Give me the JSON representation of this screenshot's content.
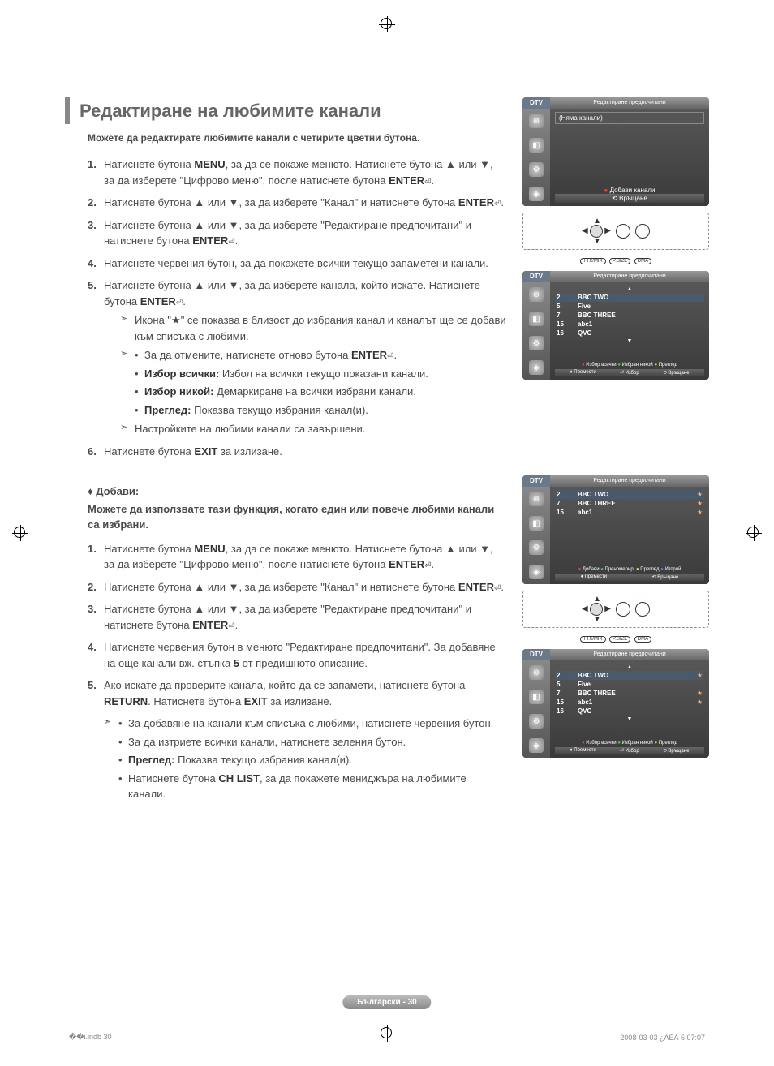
{
  "title": "Редактиране на любимите канали",
  "intro": "Можете да редактирате любимите канали с четирите цветни бутона.",
  "steps1": [
    {
      "pre": "Натиснете бутона ",
      "b1": "MENU",
      "mid": ", за да се покаже менюто. Натиснете бутона ▲ или ▼, за да изберете \"Цифрово меню\", после натиснете бутона ",
      "b2": "ENTER",
      "post": "."
    },
    {
      "pre": "Натиснете бутона ▲ или ▼, за да изберете \"Канал\" и натиснете бутона ",
      "b1": "ENTER",
      "post": "."
    },
    {
      "pre": "Натиснете бутона ▲ или ▼, за да изберете \"Редактиране предпочитани\" и натиснете бутона ",
      "b1": "ENTER",
      "post": "."
    },
    {
      "pre": "Натиснете червения бутон, за да покажете всички текущо запаметени канали."
    },
    {
      "pre": "Натиснете бутона ▲ или ▼, за да изберете канала, който искате. Натиснете бутона ",
      "b1": "ENTER",
      "post": "."
    }
  ],
  "sub1_1": "Икона \"★\" се показва в близост до избрания канал и каналът ще се добави към списъка с любими.",
  "sub1_2_intro": "За да отмените, натиснете отново бутона ",
  "sub1_2_b": "ENTER",
  "sub1_2_post": ".",
  "bullets1": [
    {
      "b": "Избор всички:",
      "t": " Избол на всички текущо показани канали."
    },
    {
      "b": "Избор никой:",
      "t": " Демаркиране на всички избрани канали."
    },
    {
      "b": "Преглед:",
      "t": " Показва текущо избрания канал(и)."
    }
  ],
  "sub1_3": "Настройките на любими канали са завършени.",
  "step6_pre": "Натиснете бутона ",
  "step6_b": "EXIT",
  "step6_post": " за излизане.",
  "section2_head": "Добави:",
  "section2_intro": "Можете да използвате тази функция, когато един или повече любими канали са избрани.",
  "steps2": [
    {
      "pre": "Натиснете бутона ",
      "b1": "MENU",
      "mid": ", за да се покаже менюто. Натиснете бутона ▲ или ▼, за да изберете \"Цифрово меню\", после натиснете бутона ",
      "b2": "ENTER",
      "post": "."
    },
    {
      "pre": "Натиснете бутона ▲ или ▼, за да изберете \"Канал\" и натиснете бутона ",
      "b1": "ENTER",
      "post": "."
    },
    {
      "pre": "Натиснете бутона ▲ или ▼, за да изберете \"Редактиране предпочитани\" и натиснете бутона ",
      "b1": "ENTER",
      "post": "."
    },
    {
      "pre": "Натиснете червения бутон в менюто \"Редактиране предпочитани\". За добавяне на още канали вж. стъпка ",
      "b1": "5",
      "post": " от предишното описание."
    },
    {
      "pre": "Ако искате да проверите канала, който да се запамети, натиснете бутона ",
      "b1": "RETURN",
      "mid": ". Натиснете бутона ",
      "b2": "EXIT",
      "post": " за излизане."
    }
  ],
  "sub2_1": "За добавяне на канали към списъка с любими, натиснете червения бутон.",
  "bullets2": [
    {
      "t": "За да изтриете всички канали, натиснете зеления бутон."
    },
    {
      "b": "Преглед:",
      "t": " Показва текущо избрания канал(и)."
    },
    {
      "pre": "Натиснете бутона ",
      "b": "CH LIST",
      "t": ", за да покажете мениджъра на любимите канали."
    }
  ],
  "tv": {
    "dtv": "DTV",
    "title": "Редактиране предпочитани",
    "empty": "(Няма канали)",
    "add": "Добави канали",
    "return": "Връщане",
    "channels2": [
      {
        "n": "2",
        "name": "BBC TWO",
        "hl": true
      },
      {
        "n": "5",
        "name": "Five"
      },
      {
        "n": "7",
        "name": "BBC THREE"
      },
      {
        "n": "15",
        "name": "abc1"
      },
      {
        "n": "16",
        "name": "QVC"
      }
    ],
    "f2a": "Избор всички",
    "f2b": "Избран никой",
    "f2c": "Преглед",
    "f2d": "Премести",
    "f2e": "Избор",
    "f2f": "Връщане",
    "channels3": [
      {
        "n": "2",
        "name": "BBC TWO",
        "star": true,
        "hl": true
      },
      {
        "n": "7",
        "name": "BBC THREE",
        "star": true
      },
      {
        "n": "15",
        "name": "abc1",
        "star": true
      }
    ],
    "f3a": "Добави",
    "f3b": "Преномерир.",
    "f3c": "Преглед",
    "f3d": "Изтрий",
    "f3e": "Премести",
    "f3f": "Връщане",
    "channels4": [
      {
        "n": "2",
        "name": "BBC TWO",
        "star": true,
        "hl": true
      },
      {
        "n": "5",
        "name": "Five"
      },
      {
        "n": "7",
        "name": "BBC THREE",
        "star": true
      },
      {
        "n": "15",
        "name": "abc1",
        "star": true
      },
      {
        "n": "16",
        "name": "QVC"
      }
    ]
  },
  "remote": {
    "ttx": "TTX/MIX",
    "psize": "P.SIZE",
    "dma": "DMA"
  },
  "page_num": "Български - 30",
  "footer_left": "��i.indb   30",
  "footer_right": "2008-03-03   ¿ÀÈÄ 5:07:07"
}
